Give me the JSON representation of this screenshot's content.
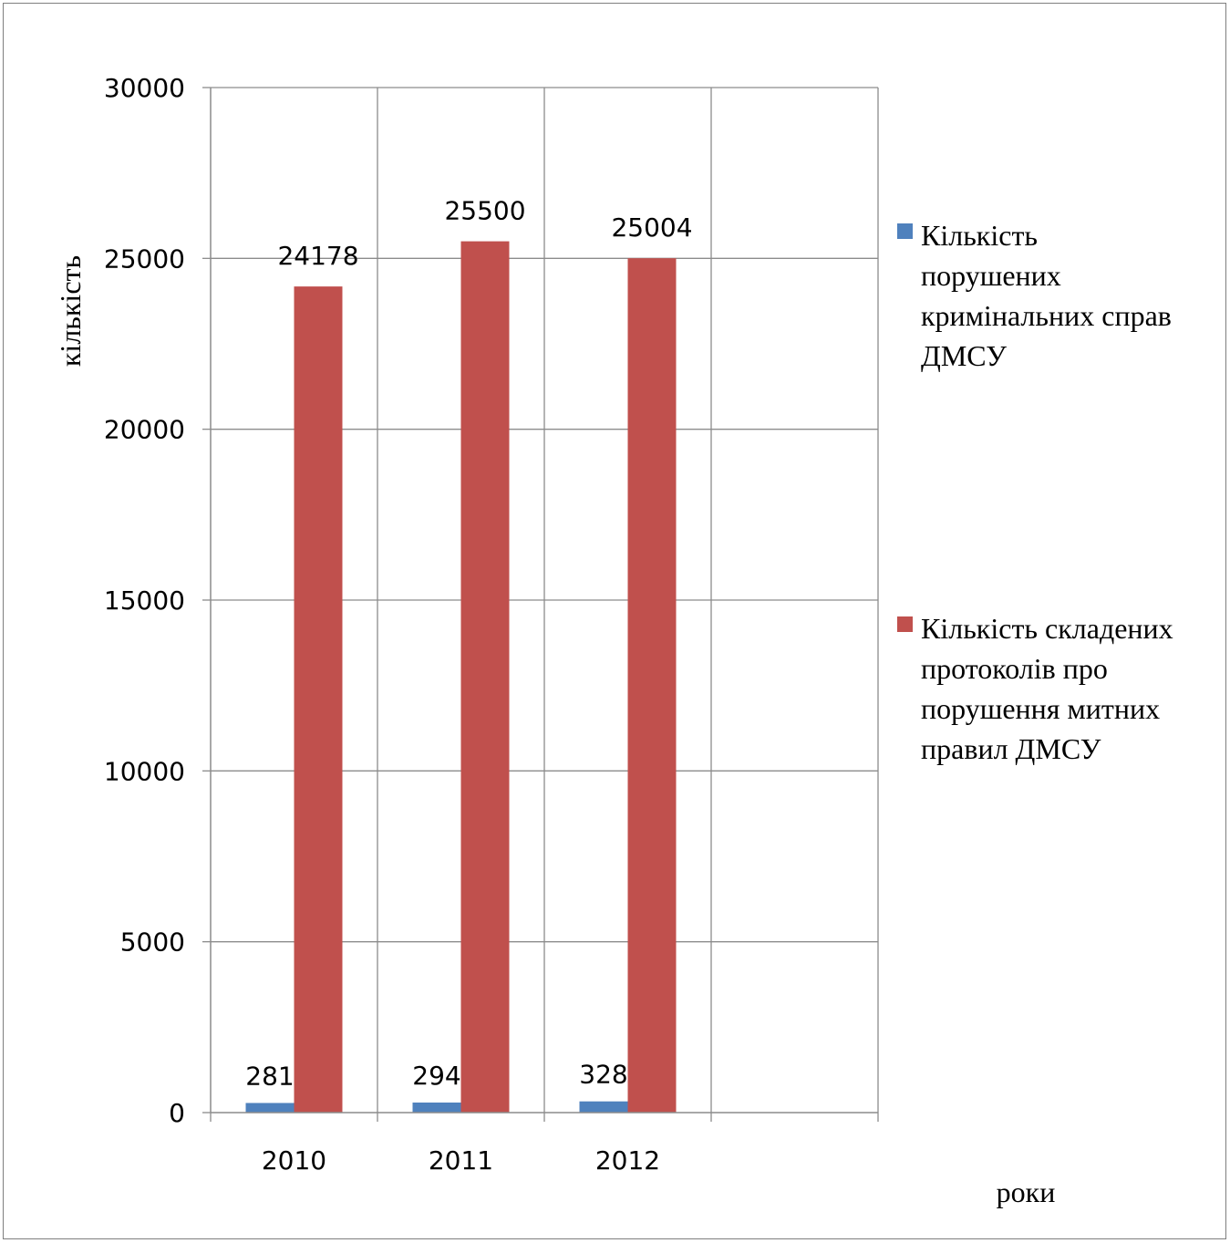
{
  "chart_data": {
    "type": "bar",
    "title": "",
    "categories": [
      "2010",
      "2011",
      "2012",
      ""
    ],
    "series": [
      {
        "name": "Кількість порушених кримінальних справ ДМСУ",
        "name_lines": [
          "Кількість",
          "порушених",
          "кримінальних справ",
          "ДМСУ"
        ],
        "color": "#4f81bd",
        "values": [
          281,
          294,
          328,
          null
        ]
      },
      {
        "name": "Кількість складених протоколів про порушення митних правил ДМСУ",
        "name_lines": [
          "Кількість складених",
          "протоколів про",
          "порушення митних",
          "правил ДМСУ"
        ],
        "color": "#c0504d",
        "values": [
          24178,
          25500,
          25004,
          null
        ]
      }
    ],
    "ylabel": "кількість",
    "xlabel": "роки",
    "ylim": [
      0,
      30000
    ],
    "yticks": [
      0,
      5000,
      10000,
      15000,
      20000,
      25000,
      30000
    ],
    "grid": true,
    "legend": "right",
    "data_labels": true
  }
}
